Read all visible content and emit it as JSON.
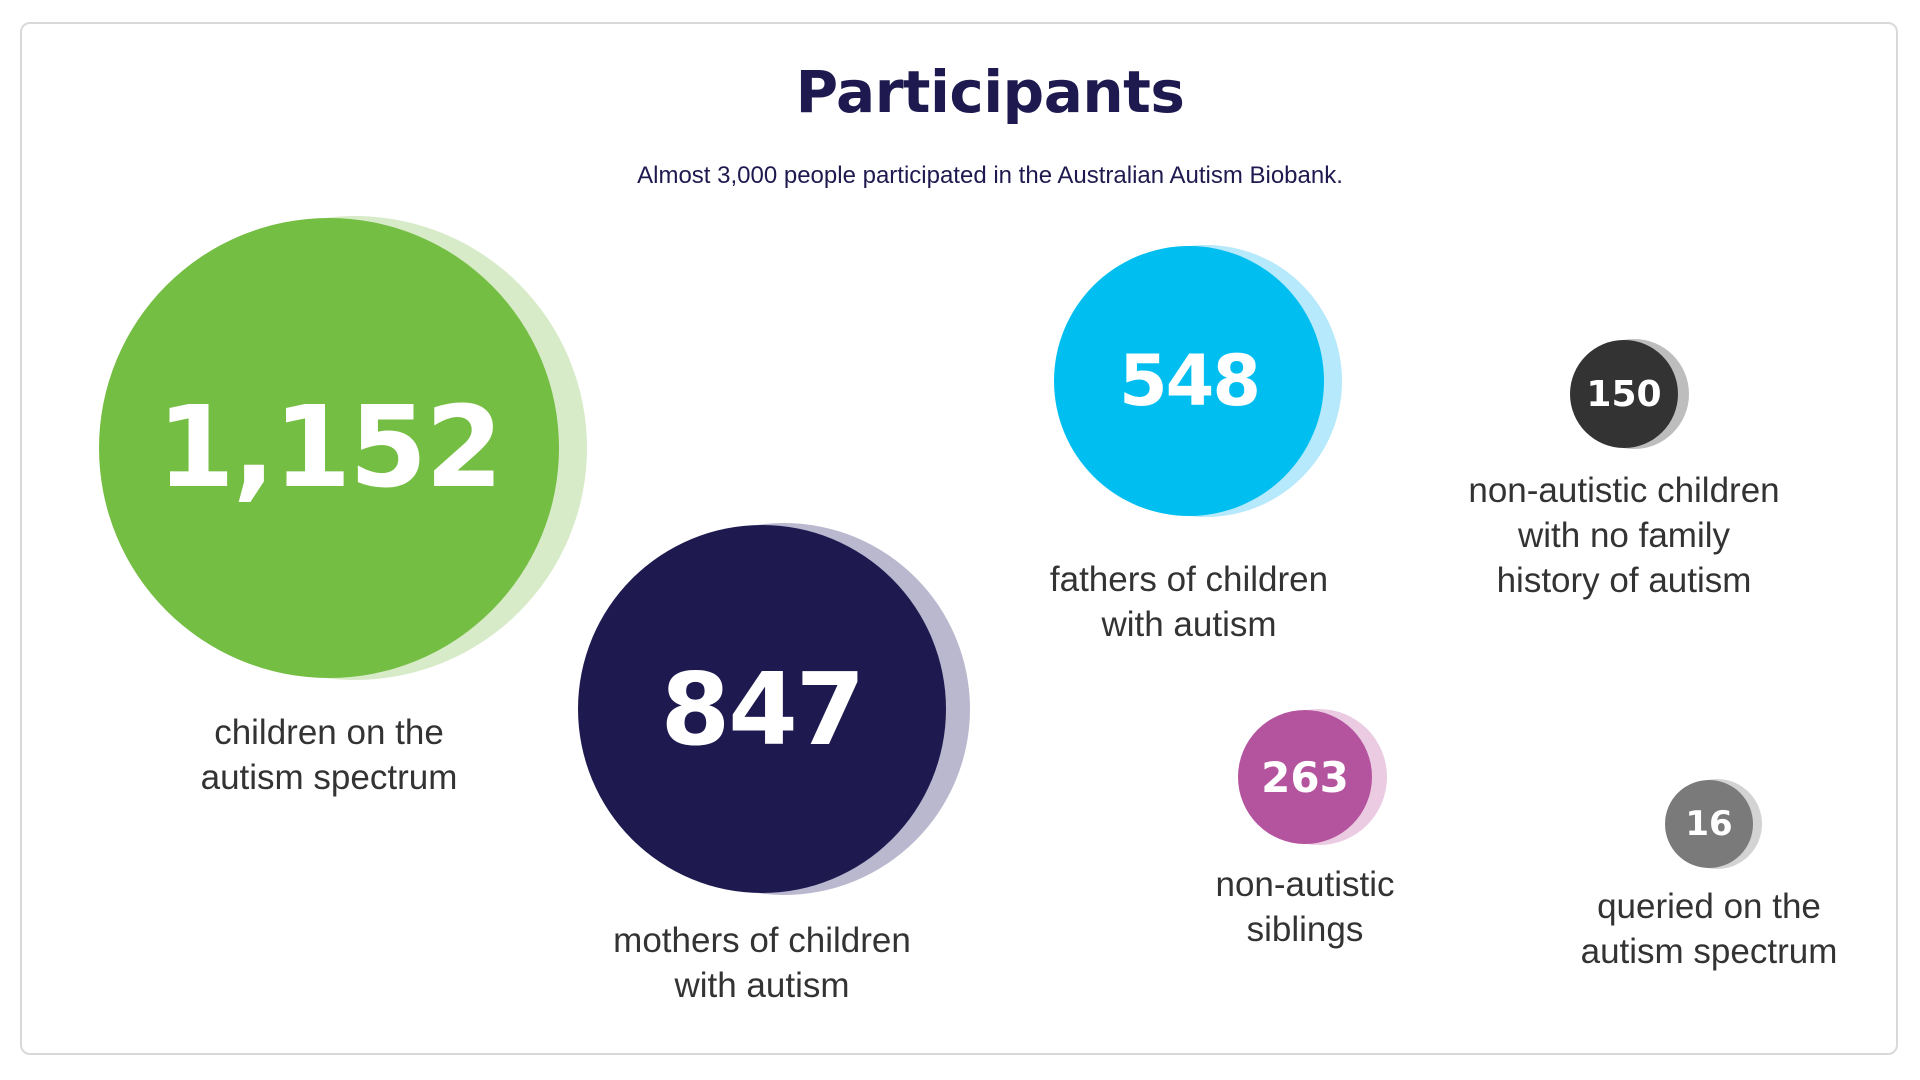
{
  "chart_data": {
    "type": "bubble",
    "title": "Participants",
    "subtitle": "Almost 3,000 people participated in the Australian Autism Biobank.",
    "items": [
      {
        "value": 1152,
        "display": "1,152",
        "label": "children on the\nautism spectrum",
        "color": "#74be43",
        "shadow_color": "#d8ebc8"
      },
      {
        "value": 847,
        "display": "847",
        "label": "mothers of children\nwith autism",
        "color": "#1e1a50",
        "shadow_color": "#b9b8cf"
      },
      {
        "value": 548,
        "display": "548",
        "label": "fathers of children\nwith autism",
        "color": "#00bff0",
        "shadow_color": "#b5e9fb"
      },
      {
        "value": 263,
        "display": "263",
        "label": "non-autistic\nsiblings",
        "color": "#b5549e",
        "shadow_color": "#ebcbe2"
      },
      {
        "value": 150,
        "display": "150",
        "label": "non-autistic children\nwith no family\nhistory of autism",
        "color": "#333333",
        "shadow_color": "#bdbdbd"
      },
      {
        "value": 16,
        "display": "16",
        "label": "queried on the\nautism spectrum",
        "color": "#7a7a7a",
        "shadow_color": "#d3d3d3"
      }
    ]
  }
}
